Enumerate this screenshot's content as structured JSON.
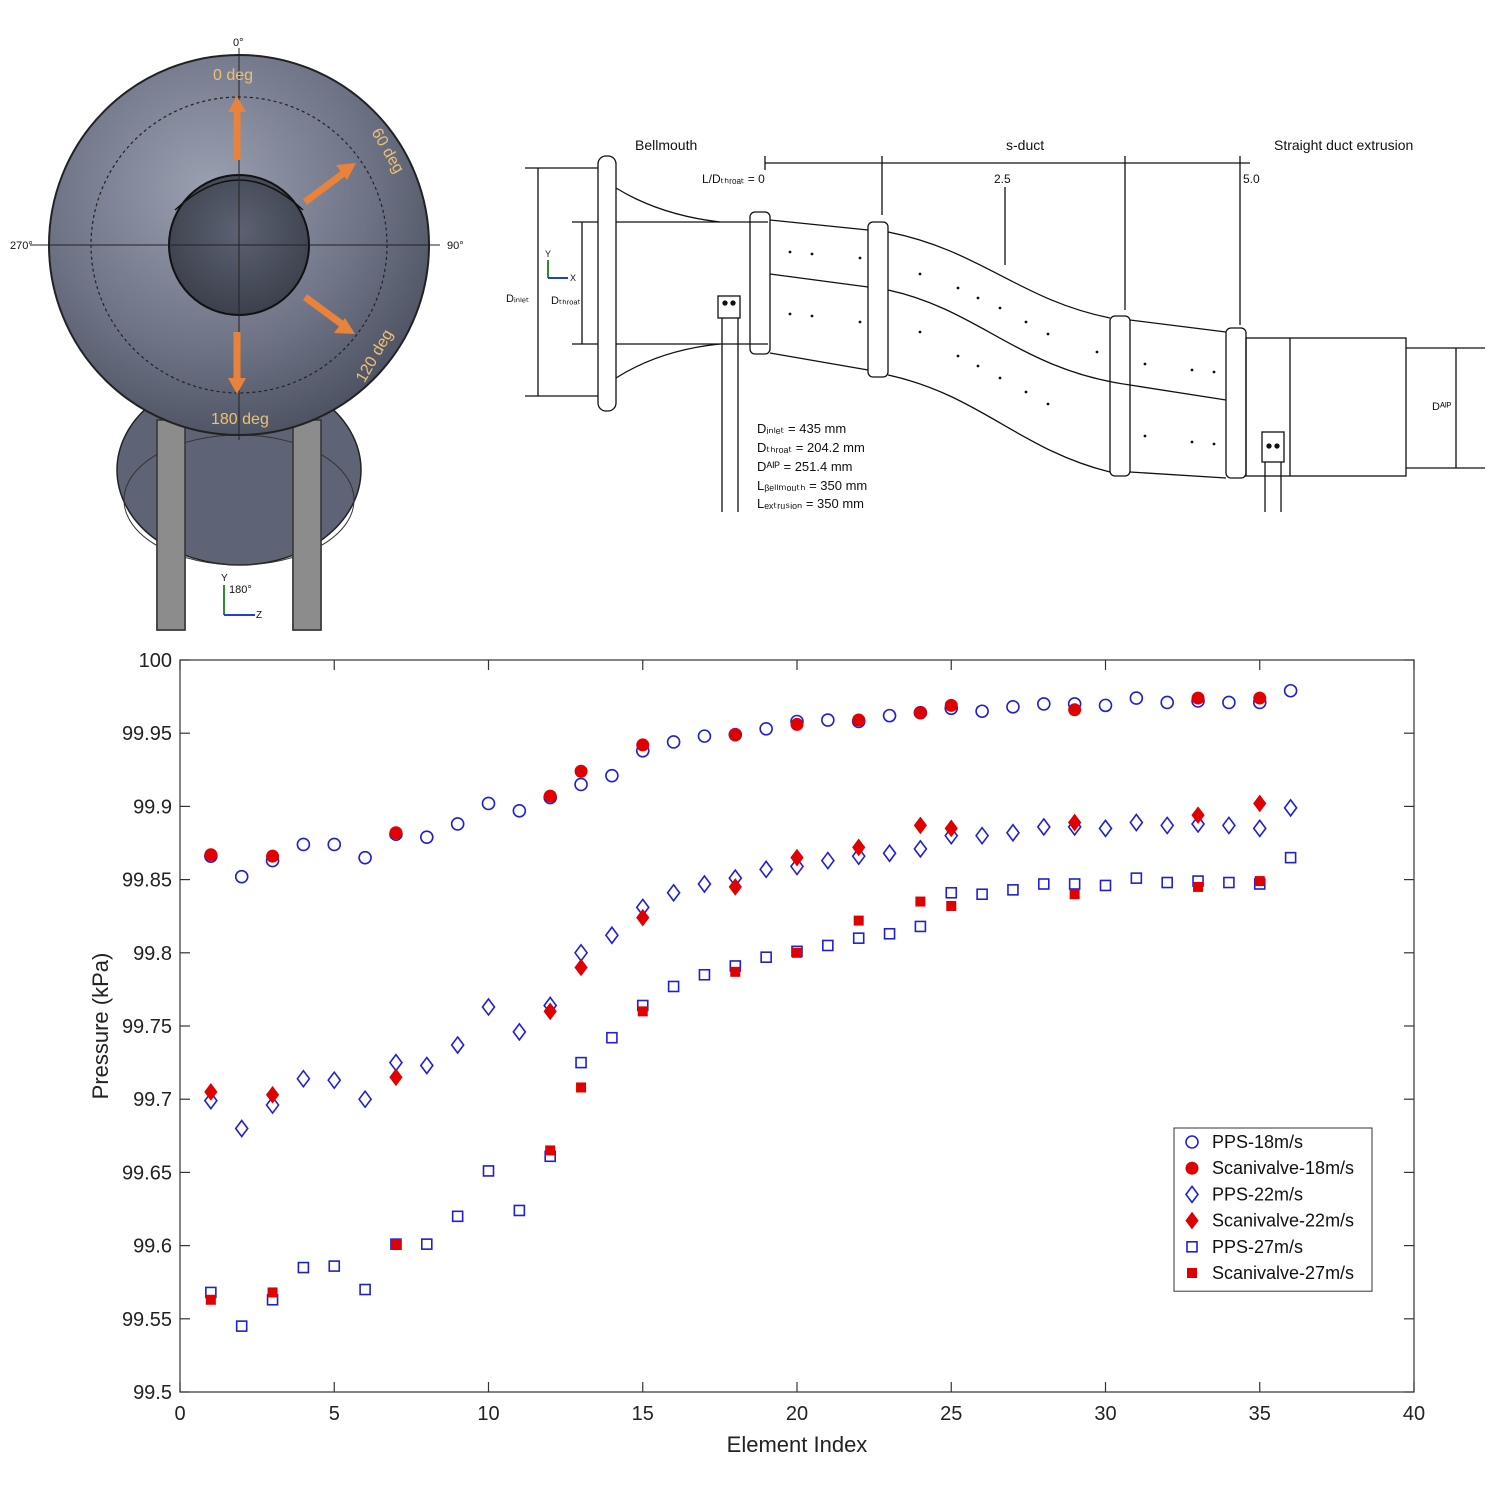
{
  "inlet_view": {
    "angles": {
      "top": "0°",
      "right": "90°",
      "left": "270°",
      "bottom": "180°"
    },
    "arrows": {
      "a0": "0 deg",
      "a60": "60 deg",
      "a120": "120 deg",
      "a180": "180 deg"
    },
    "axis": {
      "y": "Y",
      "z": "Z"
    },
    "colors": {
      "body": "#6e7486",
      "arrow": "#e9823a",
      "label": "#f0c070",
      "stand": "#8c8c8c"
    }
  },
  "duct_drawing": {
    "sections": {
      "bellmouth": "Bellmouth",
      "sduct": "s-duct",
      "extrusion": "Straight duct extrusion"
    },
    "ld_label": "L/Dₜₕᵣₒₐₜ = 0",
    "ld_ticks": {
      "mid": "2.5",
      "end": "5.0"
    },
    "dim_labels": {
      "d_inlet": "Dᵢₙₗₑₜ",
      "d_throat": "Dₜₕᵣₒₐₜ",
      "d_aip": "Dᴬᴵᴾ"
    },
    "axis": {
      "y": "Y",
      "x": "X"
    },
    "specs": [
      "Dᵢₙₗₑₜ = 435 mm",
      "Dₜₕᵣₒₐₜ = 204.2 mm",
      "Dᴬᴵᴾ = 251.4 mm",
      "Lᵦₑₗₗₘₒᵤₜₕ = 350 mm",
      "Lₑₓₜᵣᵤₛᵢₒₙ = 350 mm"
    ]
  },
  "chart_data": {
    "type": "scatter",
    "title": "",
    "xlabel": "Element Index",
    "ylabel": "Pressure (kPa)",
    "xlim": [
      0,
      40
    ],
    "ylim": [
      99.5,
      100
    ],
    "xticks": [
      "0",
      "5",
      "10",
      "15",
      "20",
      "25",
      "30",
      "35",
      "40"
    ],
    "yticks": [
      "99.5",
      "99.55",
      "99.6",
      "99.65",
      "99.7",
      "99.75",
      "99.8",
      "99.85",
      "99.9",
      "99.95",
      "100"
    ],
    "legend_position": "lower-right",
    "series": [
      {
        "name": "PPS-18m/s",
        "marker": "circle-open",
        "color": "#1f1fd6",
        "x": [
          1,
          2,
          3,
          4,
          5,
          6,
          7,
          8,
          9,
          10,
          11,
          12,
          13,
          14,
          15,
          16,
          17,
          18,
          19,
          20,
          21,
          22,
          23,
          24,
          25,
          26,
          27,
          28,
          29,
          30,
          31,
          32,
          33,
          34,
          35,
          36
        ],
        "y": [
          99.866,
          99.852,
          99.863,
          99.874,
          99.874,
          99.865,
          99.881,
          99.879,
          99.888,
          99.902,
          99.897,
          99.906,
          99.915,
          99.921,
          99.938,
          99.944,
          99.948,
          99.949,
          99.953,
          99.958,
          99.959,
          99.958,
          99.962,
          99.964,
          99.967,
          99.965,
          99.968,
          99.97,
          99.97,
          99.969,
          99.974,
          99.971,
          99.972,
          99.971,
          99.971,
          99.979
        ]
      },
      {
        "name": "Scanivalve-18m/s",
        "marker": "circle-filled",
        "color": "#e00000",
        "x": [
          1,
          3,
          7,
          12,
          13,
          15,
          18,
          20,
          22,
          24,
          25,
          29,
          33,
          35
        ],
        "y": [
          99.867,
          99.866,
          99.882,
          99.907,
          99.924,
          99.942,
          99.949,
          99.956,
          99.959,
          99.964,
          99.969,
          99.966,
          99.974,
          99.974
        ]
      },
      {
        "name": "PPS-22m/s",
        "marker": "diamond-open",
        "color": "#1f1fd6",
        "x": [
          1,
          2,
          3,
          4,
          5,
          6,
          7,
          8,
          9,
          10,
          11,
          12,
          13,
          14,
          15,
          16,
          17,
          18,
          19,
          20,
          21,
          22,
          23,
          24,
          25,
          26,
          27,
          28,
          29,
          30,
          31,
          32,
          33,
          34,
          35,
          36
        ],
        "y": [
          99.699,
          99.68,
          99.696,
          99.714,
          99.713,
          99.7,
          99.725,
          99.723,
          99.737,
          99.763,
          99.746,
          99.764,
          99.8,
          99.812,
          99.831,
          99.841,
          99.847,
          99.851,
          99.857,
          99.859,
          99.863,
          99.866,
          99.868,
          99.871,
          99.88,
          99.88,
          99.882,
          99.886,
          99.886,
          99.885,
          99.889,
          99.887,
          99.888,
          99.887,
          99.885,
          99.899
        ]
      },
      {
        "name": "Scanivalve-22m/s",
        "marker": "diamond-filled",
        "color": "#e00000",
        "x": [
          1,
          3,
          7,
          12,
          13,
          15,
          18,
          20,
          22,
          24,
          25,
          29,
          33,
          35
        ],
        "y": [
          99.705,
          99.703,
          99.715,
          99.76,
          99.79,
          99.824,
          99.845,
          99.865,
          99.872,
          99.887,
          99.885,
          99.889,
          99.894,
          99.902
        ]
      },
      {
        "name": "PPS-27m/s",
        "marker": "square-open",
        "color": "#1f1fd6",
        "x": [
          1,
          2,
          3,
          4,
          5,
          6,
          7,
          8,
          9,
          10,
          11,
          12,
          13,
          14,
          15,
          16,
          17,
          18,
          19,
          20,
          21,
          22,
          23,
          24,
          25,
          26,
          27,
          28,
          29,
          30,
          31,
          32,
          33,
          34,
          35,
          36
        ],
        "y": [
          99.568,
          99.545,
          99.563,
          99.585,
          99.586,
          99.57,
          99.601,
          99.601,
          99.62,
          99.651,
          99.624,
          99.661,
          99.725,
          99.742,
          99.764,
          99.777,
          99.785,
          99.791,
          99.797,
          99.801,
          99.805,
          99.81,
          99.813,
          99.818,
          99.841,
          99.84,
          99.843,
          99.847,
          99.847,
          99.846,
          99.851,
          99.848,
          99.849,
          99.848,
          99.847,
          99.865
        ]
      },
      {
        "name": "Scanivalve-27m/s",
        "marker": "square-filled",
        "color": "#e00000",
        "x": [
          1,
          3,
          7,
          12,
          13,
          15,
          18,
          20,
          22,
          24,
          25,
          29,
          33,
          35
        ],
        "y": [
          99.563,
          99.568,
          99.601,
          99.665,
          99.708,
          99.76,
          99.787,
          99.8,
          99.822,
          99.835,
          99.832,
          99.84,
          99.845,
          99.849
        ]
      }
    ]
  }
}
